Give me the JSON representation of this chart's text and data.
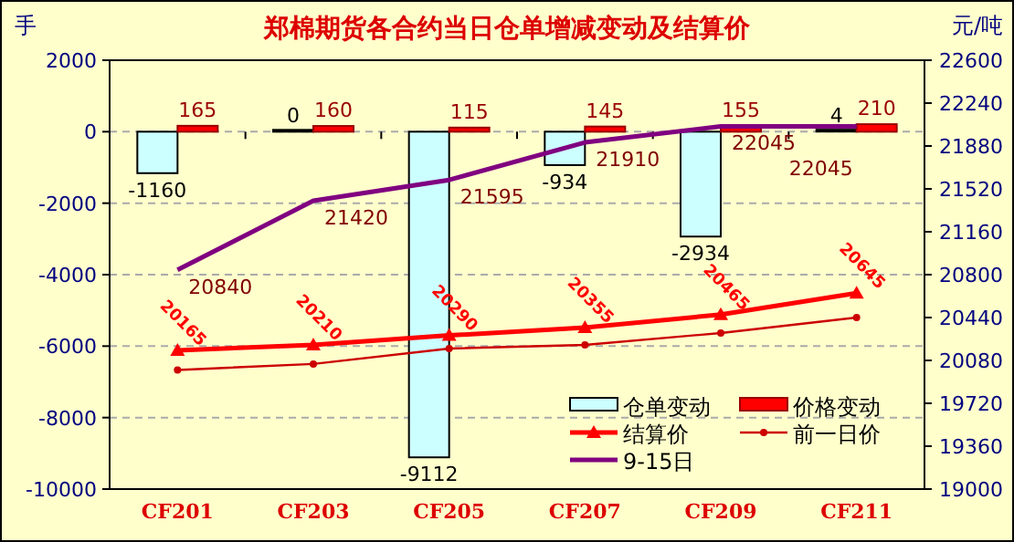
{
  "chart_data": {
    "type": "bar",
    "title": "郑棉期货各合约当日仓单增减变动及结算价",
    "ylabel": "手",
    "y2label": "元/吨",
    "categories": [
      "CF201",
      "CF203",
      "CF205",
      "CF207",
      "CF209",
      "CF211"
    ],
    "series": [
      {
        "name": "仓单变动",
        "color": "#ccffff",
        "values": [
          -1160,
          0,
          -9112,
          -934,
          -2934,
          4
        ],
        "value_labels": [
          "-1160",
          "0",
          "-9112",
          "-934",
          "-2934",
          "4"
        ]
      },
      {
        "name": "价格变动",
        "color": "#ff0000",
        "values": [
          165,
          160,
          115,
          145,
          155,
          210
        ],
        "value_labels": [
          "165",
          "160",
          "115",
          "145",
          "155",
          "210"
        ]
      },
      {
        "name": "结算价",
        "type": "line",
        "axis": "y2",
        "color": "#ff0000",
        "marker": "triangle",
        "values": [
          20165,
          20210,
          20290,
          20355,
          20465,
          20645
        ],
        "value_labels": [
          "20165",
          "20210",
          "20290",
          "20355",
          "20465",
          "20645"
        ]
      },
      {
        "name": "前一日价",
        "type": "line",
        "axis": "y2",
        "color": "#cc0000",
        "marker": "circle",
        "values": [
          20000,
          20050,
          20180,
          20210,
          20310,
          20440
        ]
      },
      {
        "name": "9-15日",
        "type": "line",
        "axis": "y2",
        "color": "#800080",
        "marker": "none",
        "values": [
          20840,
          21420,
          21595,
          21910,
          22045,
          22045
        ],
        "value_labels": [
          "20840",
          "21420",
          "21595",
          "21910",
          "22045",
          "22045"
        ]
      }
    ],
    "ylim": [
      -10000,
      2000
    ],
    "yticks": [
      -10000,
      -8000,
      -6000,
      -4000,
      -2000,
      0,
      2000
    ],
    "y2lim": [
      19000,
      22600
    ],
    "y2ticks": [
      19000,
      19360,
      19720,
      20080,
      20440,
      20800,
      21160,
      21520,
      21880,
      22240,
      22600
    ],
    "grid": "y",
    "legend": "bottom right"
  }
}
